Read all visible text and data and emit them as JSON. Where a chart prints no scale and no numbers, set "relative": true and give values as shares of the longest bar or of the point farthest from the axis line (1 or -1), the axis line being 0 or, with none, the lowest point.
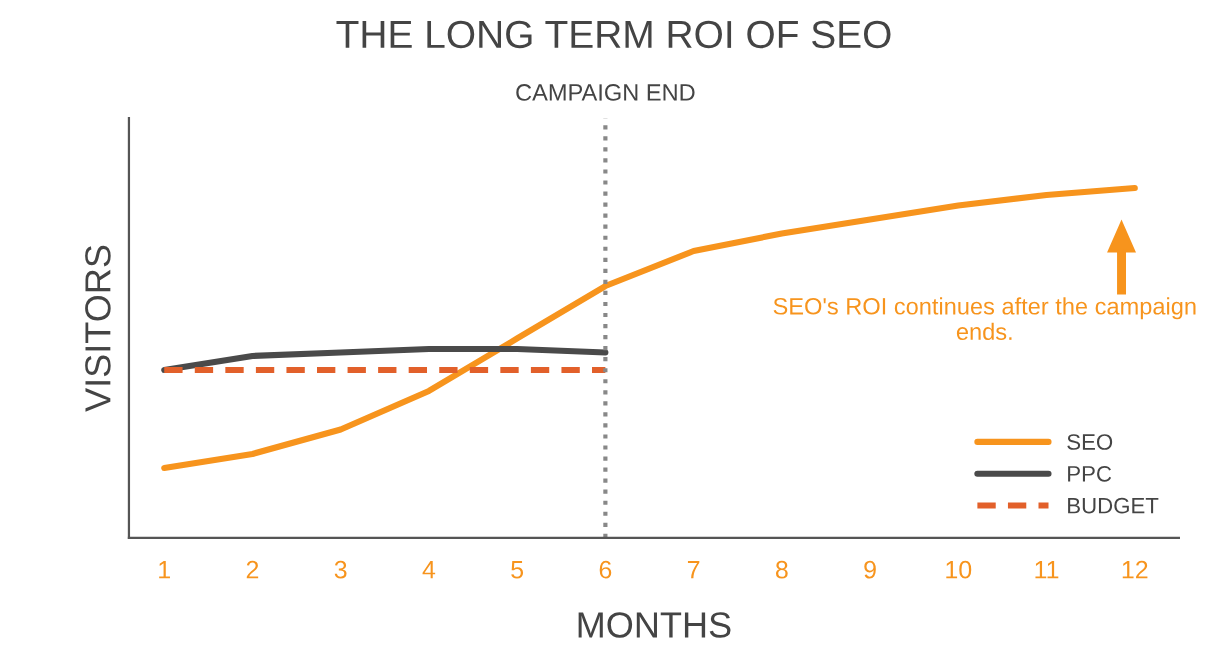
{
  "chart_data": {
    "type": "line",
    "title": "THE LONG TERM ROI OF SEO",
    "xlabel": "MONTHS",
    "ylabel": "VISITORS",
    "relative": true,
    "x": [
      1,
      2,
      3,
      4,
      5,
      6,
      7,
      8,
      9,
      10,
      11,
      12
    ],
    "xlim": [
      0.6,
      12.5
    ],
    "xticks": [
      1,
      2,
      3,
      4,
      5,
      6,
      7,
      8,
      9,
      10,
      11,
      12
    ],
    "series": [
      {
        "name": "SEO",
        "color": "#f7941d",
        "line_style": "solid",
        "values": [
          0.2,
          0.24,
          0.31,
          0.42,
          0.57,
          0.72,
          0.82,
          0.87,
          0.91,
          0.95,
          0.98,
          1
        ]
      },
      {
        "name": "PPC",
        "color": "#4a4a4a",
        "line_style": "solid",
        "values": [
          0.48,
          0.52,
          0.53,
          0.54,
          0.54,
          0.53,
          null,
          null,
          null,
          null,
          null,
          null
        ]
      },
      {
        "name": "BUDGET",
        "color": "#e2602a",
        "line_style": "dashed",
        "values": [
          0.48,
          0.48,
          0.48,
          0.48,
          0.48,
          0.48,
          null,
          null,
          null,
          null,
          null,
          null
        ]
      }
    ],
    "ref_lines": [
      {
        "axis": "x",
        "value": 6,
        "label": "CAMPAIGN END",
        "color": "#888888",
        "line_style": "dotted"
      }
    ],
    "annotations": [
      "SEO's ROI continues after the campaign ends."
    ],
    "legend": "bottom right",
    "grid": false,
    "marker": "none"
  }
}
